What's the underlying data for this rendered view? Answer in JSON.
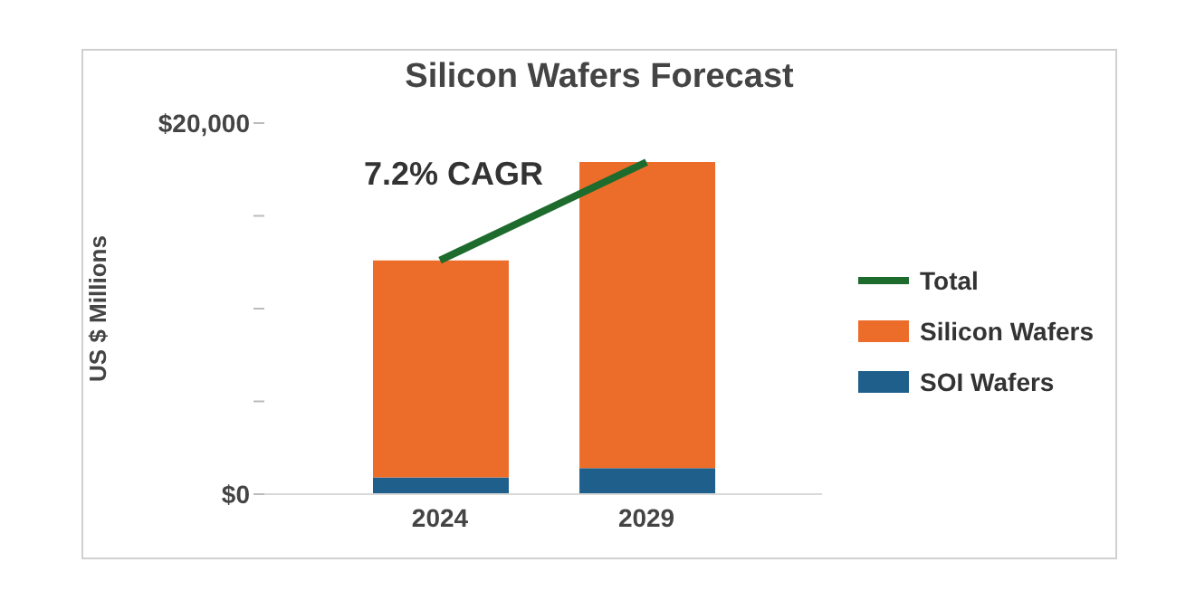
{
  "chart_data": {
    "type": "bar",
    "title": "Silicon Wafers Forecast",
    "ylabel": "US $ Millions",
    "categories": [
      "2024",
      "2029"
    ],
    "stacked": true,
    "series": [
      {
        "name": "SOI Wafers",
        "color": "#1f5f8b",
        "values": [
          900,
          1400
        ]
      },
      {
        "name": "Silicon Wafers",
        "color": "#ec6d2a",
        "values": [
          11700,
          16500
        ]
      },
      {
        "name": "Total",
        "type": "line",
        "color": "#1e6b2e",
        "values": [
          12600,
          17900
        ]
      }
    ],
    "ylim": [
      0,
      20000
    ],
    "yticks": [
      {
        "value": 0,
        "label": "$0"
      },
      {
        "value": 5000,
        "label": null
      },
      {
        "value": 10000,
        "label": null
      },
      {
        "value": 15000,
        "label": null
      },
      {
        "value": 20000,
        "label": "$20,000"
      }
    ],
    "annotations": [
      "7.2% CAGR"
    ],
    "legend": "right",
    "grid": false
  }
}
